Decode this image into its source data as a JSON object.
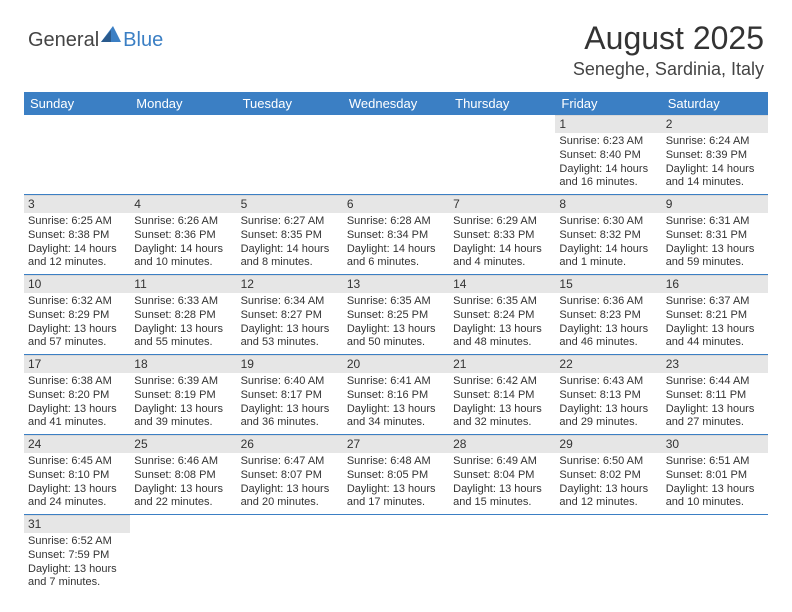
{
  "logo": {
    "general": "General",
    "blue": "Blue"
  },
  "title": "August 2025",
  "location": "Seneghe, Sardinia, Italy",
  "colors": {
    "header_bg": "#3b7fc4",
    "header_text": "#ffffff",
    "daynum_bg": "#e6e6e6",
    "week_divider": "#3b7fc4",
    "body_text": "#333333"
  },
  "dayNames": [
    "Sunday",
    "Monday",
    "Tuesday",
    "Wednesday",
    "Thursday",
    "Friday",
    "Saturday"
  ],
  "weeks": [
    [
      null,
      null,
      null,
      null,
      null,
      {
        "n": "1",
        "sunrise": "Sunrise: 6:23 AM",
        "sunset": "Sunset: 8:40 PM",
        "daylight": "Daylight: 14 hours and 16 minutes."
      },
      {
        "n": "2",
        "sunrise": "Sunrise: 6:24 AM",
        "sunset": "Sunset: 8:39 PM",
        "daylight": "Daylight: 14 hours and 14 minutes."
      }
    ],
    [
      {
        "n": "3",
        "sunrise": "Sunrise: 6:25 AM",
        "sunset": "Sunset: 8:38 PM",
        "daylight": "Daylight: 14 hours and 12 minutes."
      },
      {
        "n": "4",
        "sunrise": "Sunrise: 6:26 AM",
        "sunset": "Sunset: 8:36 PM",
        "daylight": "Daylight: 14 hours and 10 minutes."
      },
      {
        "n": "5",
        "sunrise": "Sunrise: 6:27 AM",
        "sunset": "Sunset: 8:35 PM",
        "daylight": "Daylight: 14 hours and 8 minutes."
      },
      {
        "n": "6",
        "sunrise": "Sunrise: 6:28 AM",
        "sunset": "Sunset: 8:34 PM",
        "daylight": "Daylight: 14 hours and 6 minutes."
      },
      {
        "n": "7",
        "sunrise": "Sunrise: 6:29 AM",
        "sunset": "Sunset: 8:33 PM",
        "daylight": "Daylight: 14 hours and 4 minutes."
      },
      {
        "n": "8",
        "sunrise": "Sunrise: 6:30 AM",
        "sunset": "Sunset: 8:32 PM",
        "daylight": "Daylight: 14 hours and 1 minute."
      },
      {
        "n": "9",
        "sunrise": "Sunrise: 6:31 AM",
        "sunset": "Sunset: 8:31 PM",
        "daylight": "Daylight: 13 hours and 59 minutes."
      }
    ],
    [
      {
        "n": "10",
        "sunrise": "Sunrise: 6:32 AM",
        "sunset": "Sunset: 8:29 PM",
        "daylight": "Daylight: 13 hours and 57 minutes."
      },
      {
        "n": "11",
        "sunrise": "Sunrise: 6:33 AM",
        "sunset": "Sunset: 8:28 PM",
        "daylight": "Daylight: 13 hours and 55 minutes."
      },
      {
        "n": "12",
        "sunrise": "Sunrise: 6:34 AM",
        "sunset": "Sunset: 8:27 PM",
        "daylight": "Daylight: 13 hours and 53 minutes."
      },
      {
        "n": "13",
        "sunrise": "Sunrise: 6:35 AM",
        "sunset": "Sunset: 8:25 PM",
        "daylight": "Daylight: 13 hours and 50 minutes."
      },
      {
        "n": "14",
        "sunrise": "Sunrise: 6:35 AM",
        "sunset": "Sunset: 8:24 PM",
        "daylight": "Daylight: 13 hours and 48 minutes."
      },
      {
        "n": "15",
        "sunrise": "Sunrise: 6:36 AM",
        "sunset": "Sunset: 8:23 PM",
        "daylight": "Daylight: 13 hours and 46 minutes."
      },
      {
        "n": "16",
        "sunrise": "Sunrise: 6:37 AM",
        "sunset": "Sunset: 8:21 PM",
        "daylight": "Daylight: 13 hours and 44 minutes."
      }
    ],
    [
      {
        "n": "17",
        "sunrise": "Sunrise: 6:38 AM",
        "sunset": "Sunset: 8:20 PM",
        "daylight": "Daylight: 13 hours and 41 minutes."
      },
      {
        "n": "18",
        "sunrise": "Sunrise: 6:39 AM",
        "sunset": "Sunset: 8:19 PM",
        "daylight": "Daylight: 13 hours and 39 minutes."
      },
      {
        "n": "19",
        "sunrise": "Sunrise: 6:40 AM",
        "sunset": "Sunset: 8:17 PM",
        "daylight": "Daylight: 13 hours and 36 minutes."
      },
      {
        "n": "20",
        "sunrise": "Sunrise: 6:41 AM",
        "sunset": "Sunset: 8:16 PM",
        "daylight": "Daylight: 13 hours and 34 minutes."
      },
      {
        "n": "21",
        "sunrise": "Sunrise: 6:42 AM",
        "sunset": "Sunset: 8:14 PM",
        "daylight": "Daylight: 13 hours and 32 minutes."
      },
      {
        "n": "22",
        "sunrise": "Sunrise: 6:43 AM",
        "sunset": "Sunset: 8:13 PM",
        "daylight": "Daylight: 13 hours and 29 minutes."
      },
      {
        "n": "23",
        "sunrise": "Sunrise: 6:44 AM",
        "sunset": "Sunset: 8:11 PM",
        "daylight": "Daylight: 13 hours and 27 minutes."
      }
    ],
    [
      {
        "n": "24",
        "sunrise": "Sunrise: 6:45 AM",
        "sunset": "Sunset: 8:10 PM",
        "daylight": "Daylight: 13 hours and 24 minutes."
      },
      {
        "n": "25",
        "sunrise": "Sunrise: 6:46 AM",
        "sunset": "Sunset: 8:08 PM",
        "daylight": "Daylight: 13 hours and 22 minutes."
      },
      {
        "n": "26",
        "sunrise": "Sunrise: 6:47 AM",
        "sunset": "Sunset: 8:07 PM",
        "daylight": "Daylight: 13 hours and 20 minutes."
      },
      {
        "n": "27",
        "sunrise": "Sunrise: 6:48 AM",
        "sunset": "Sunset: 8:05 PM",
        "daylight": "Daylight: 13 hours and 17 minutes."
      },
      {
        "n": "28",
        "sunrise": "Sunrise: 6:49 AM",
        "sunset": "Sunset: 8:04 PM",
        "daylight": "Daylight: 13 hours and 15 minutes."
      },
      {
        "n": "29",
        "sunrise": "Sunrise: 6:50 AM",
        "sunset": "Sunset: 8:02 PM",
        "daylight": "Daylight: 13 hours and 12 minutes."
      },
      {
        "n": "30",
        "sunrise": "Sunrise: 6:51 AM",
        "sunset": "Sunset: 8:01 PM",
        "daylight": "Daylight: 13 hours and 10 minutes."
      }
    ],
    [
      {
        "n": "31",
        "sunrise": "Sunrise: 6:52 AM",
        "sunset": "Sunset: 7:59 PM",
        "daylight": "Daylight: 13 hours and 7 minutes."
      },
      null,
      null,
      null,
      null,
      null,
      null
    ]
  ]
}
